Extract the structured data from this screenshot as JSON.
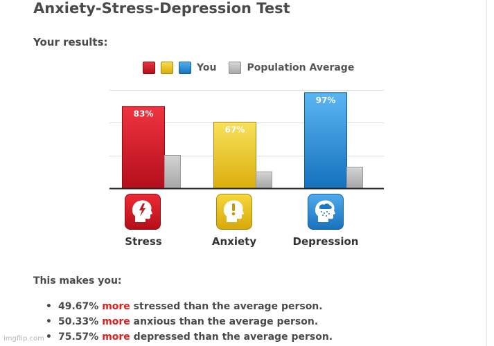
{
  "page": {
    "title": "Anxiety-Stress-Depression Test",
    "subtitle": "Your results:"
  },
  "legend": {
    "you_label": "You",
    "population_label": "Population Average"
  },
  "chart_data": {
    "type": "bar",
    "categories": [
      "Stress",
      "Anxiety",
      "Depression"
    ],
    "series": [
      {
        "name": "You",
        "values": [
          83,
          67,
          97
        ],
        "colors": [
          "#d8202b",
          "#e9c31c",
          "#2b8fd3"
        ]
      },
      {
        "name": "Population Average",
        "values": [
          33.33,
          16.67,
          21.43
        ],
        "color": "#b9b9b9"
      }
    ],
    "data_labels": [
      "83%",
      "67%",
      "97%"
    ],
    "ylim": [
      0,
      100
    ],
    "grid": true,
    "legend_position": "top"
  },
  "icons": [
    "stress-head-icon",
    "anxiety-head-icon",
    "depression-head-icon"
  ],
  "summary": {
    "heading": "This makes you:",
    "bullet": "•",
    "items": [
      {
        "pre": "49.67% ",
        "em": "more",
        "post": " stressed than the average person."
      },
      {
        "pre": "50.33% ",
        "em": "more",
        "post": " anxious than the average person."
      },
      {
        "pre": "75.57% ",
        "em": "more",
        "post": " depressed than the average person."
      }
    ]
  },
  "watermark": "imgflip.com",
  "colors": {
    "stress": "#d8202b",
    "anxiety": "#e9c31c",
    "depression": "#2b8fd3",
    "average": "#b9b9b9",
    "more": "#e02020"
  }
}
